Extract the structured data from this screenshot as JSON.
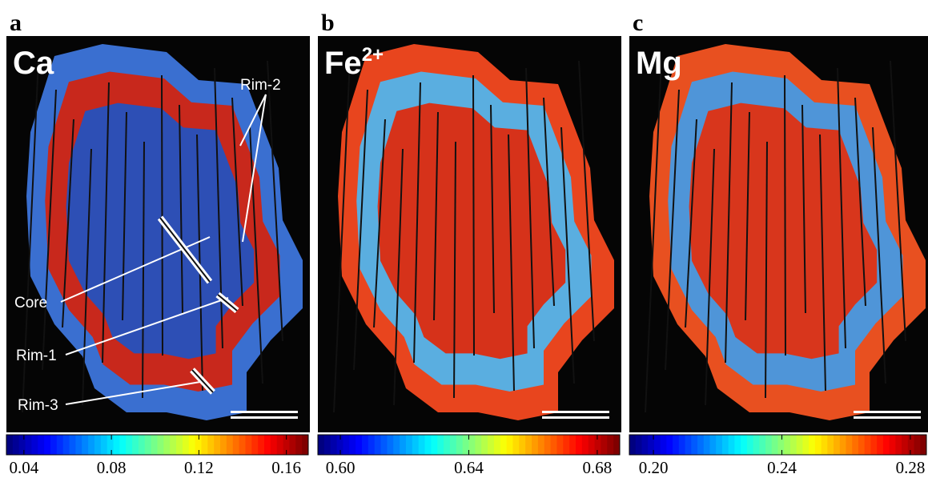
{
  "panels": [
    {
      "letter": "a",
      "element": "Ca",
      "cbar_lim": [
        0.032,
        0.17
      ],
      "cbar_ticks": [
        0.04,
        0.08,
        0.12,
        0.16
      ],
      "annotations": [
        "Rim-2",
        "Core",
        "Rim-1",
        "Rim-3"
      ]
    },
    {
      "letter": "b",
      "element": "Fe",
      "element_sup": "2+",
      "cbar_lim": [
        0.593,
        0.687
      ],
      "cbar_ticks": [
        {
          "value": 0.6,
          "label": "0.60"
        },
        0.64,
        0.68
      ]
    },
    {
      "letter": "c",
      "element": "Mg",
      "cbar_lim": [
        0.1925,
        0.285
      ],
      "cbar_ticks": [
        {
          "value": 0.2,
          "label": "0.20"
        },
        0.24,
        0.28
      ]
    }
  ]
}
